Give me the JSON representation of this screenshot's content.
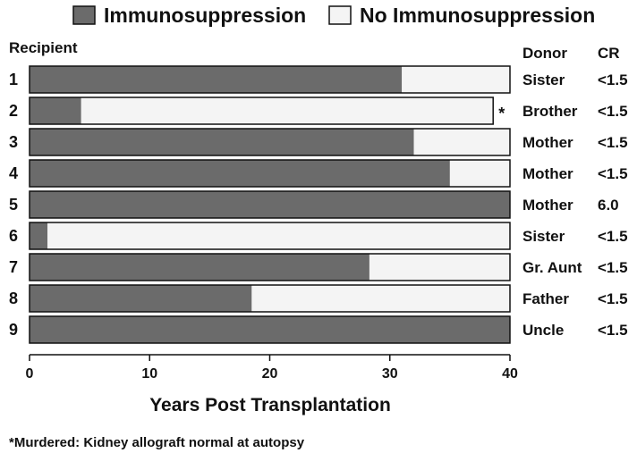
{
  "chart_data": {
    "type": "bar",
    "orientation": "horizontal",
    "stacked": true,
    "legend": {
      "position": "top",
      "entries": [
        {
          "label": "Immunosuppression",
          "color": "#6b6b6b"
        },
        {
          "label": "No Immunosuppression",
          "color": "#f4f4f4"
        }
      ]
    },
    "row_header": "Recipient",
    "donor_header": "Donor",
    "cr_header": "CR",
    "recipients": [
      "1",
      "2",
      "3",
      "4",
      "5",
      "6",
      "7",
      "8",
      "9"
    ],
    "series": [
      {
        "name": "Immunosuppression",
        "values": [
          31,
          4.3,
          32,
          35,
          40,
          1.5,
          28.3,
          18.5,
          40
        ]
      },
      {
        "name": "No Immunosuppression",
        "values": [
          9,
          34.3,
          8,
          5,
          0,
          38.5,
          11.7,
          21.5,
          0
        ]
      }
    ],
    "markers": [
      "",
      "*",
      "",
      "",
      "",
      "",
      "",
      "",
      ""
    ],
    "donors": [
      "Sister",
      "Brother",
      "Mother",
      "Mother",
      "Mother",
      "Sister",
      "Gr. Aunt",
      "Father",
      "Uncle"
    ],
    "cr": [
      "<1.5",
      "<1.5",
      "<1.5",
      "<1.5",
      "6.0",
      "<1.5",
      "<1.5",
      "<1.5",
      "<1.5"
    ],
    "xlabel": "Years Post Transplantation",
    "xlim": [
      0,
      40
    ],
    "xticks": [
      0,
      10,
      20,
      30,
      40
    ],
    "grid": false,
    "footnote": "*Murdered: Kidney allograft normal at autopsy"
  }
}
